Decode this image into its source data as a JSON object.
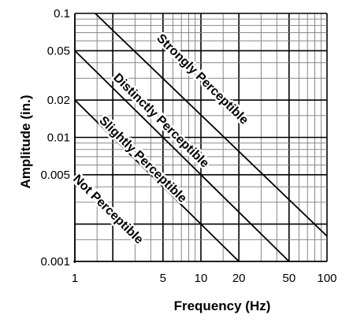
{
  "chart_data": {
    "type": "line",
    "title": "",
    "xlabel": "Frequency (Hz)",
    "ylabel": "Amplitude (in.)",
    "xscale": "log",
    "yscale": "log",
    "xlim": [
      1,
      100
    ],
    "ylim": [
      0.001,
      0.1
    ],
    "x_ticks": [
      {
        "value": 1,
        "label": "1"
      },
      {
        "value": 5,
        "label": "5"
      },
      {
        "value": 10,
        "label": "10"
      },
      {
        "value": 20,
        "label": "20"
      },
      {
        "value": 50,
        "label": "50"
      },
      {
        "value": 100,
        "label": "100"
      }
    ],
    "y_ticks": [
      {
        "value": 0.1,
        "label": "0.1"
      },
      {
        "value": 0.05,
        "label": "0.05"
      },
      {
        "value": 0.02,
        "label": "0.02"
      },
      {
        "value": 0.01,
        "label": "0.01"
      },
      {
        "value": 0.005,
        "label": "0.005"
      },
      {
        "value": 0.001,
        "label": "0.001"
      }
    ],
    "grid": true,
    "series": [
      {
        "x": [
          1.0,
          20.0
        ],
        "y": [
          0.02,
          0.001
        ]
      },
      {
        "x": [
          1.0,
          50.0
        ],
        "y": [
          0.05,
          0.001
        ]
      },
      {
        "x": [
          1.45,
          100.0
        ],
        "y": [
          0.1,
          0.0016
        ]
      }
    ],
    "annotations": [
      {
        "text": "Strongly Perceptible",
        "x": 9.8,
        "y": 0.028
      },
      {
        "text": "Distinctly Perceptible",
        "x": 4.6,
        "y": 0.013
      },
      {
        "text": "Slightly Perceptible",
        "x": 3.3,
        "y": 0.0063
      },
      {
        "text": "Not Perceptible",
        "x": 1.75,
        "y": 0.0025
      }
    ]
  }
}
